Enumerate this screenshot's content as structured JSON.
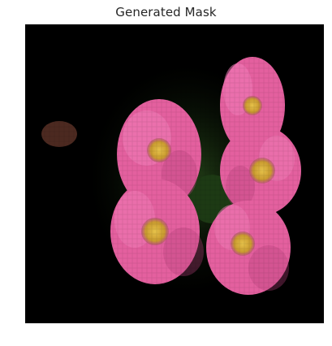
{
  "figure": {
    "title": "Generated Mask"
  },
  "image": {
    "subject": "pixelated-pink-flowers",
    "colors": {
      "background": "#000000",
      "petal": "#e4609f",
      "petal_light": "#f07cb8",
      "petal_dark": "#b83f7a",
      "center": "#d8b23a",
      "center_dark": "#a27a2a",
      "leaf": "#1d3a14",
      "stray": "#8a4a3a"
    }
  }
}
